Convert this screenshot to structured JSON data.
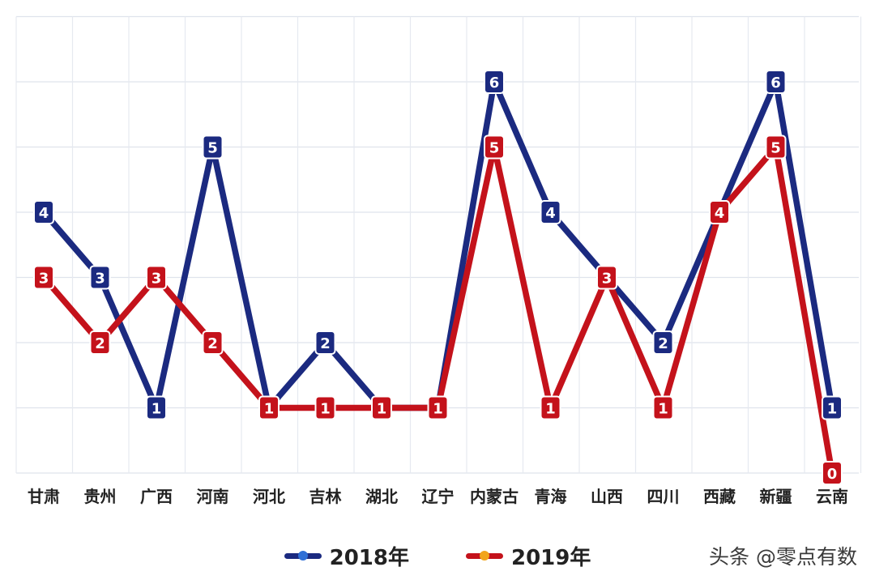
{
  "chart_data": {
    "type": "line",
    "categories": [
      "甘肃",
      "贵州",
      "广西",
      "河南",
      "河北",
      "吉林",
      "湖北",
      "辽宁",
      "内蒙古",
      "青海",
      "山西",
      "四川",
      "西藏",
      "新疆",
      "云南"
    ],
    "series": [
      {
        "name": "2018年",
        "color": "#1b2a80",
        "dot_color": "#2f6fd6",
        "values": [
          4,
          3,
          1,
          5,
          1,
          2,
          1,
          1,
          6,
          4,
          3,
          2,
          4,
          6,
          1
        ]
      },
      {
        "name": "2019年",
        "color": "#c4121b",
        "dot_color": "#f2a51c",
        "values": [
          3,
          2,
          3,
          2,
          1,
          1,
          1,
          1,
          5,
          1,
          3,
          1,
          4,
          5,
          0
        ]
      }
    ],
    "ylim": [
      0,
      7
    ],
    "grid": true,
    "legend_position": "bottom-center"
  },
  "watermark": "头条 @零点有数"
}
